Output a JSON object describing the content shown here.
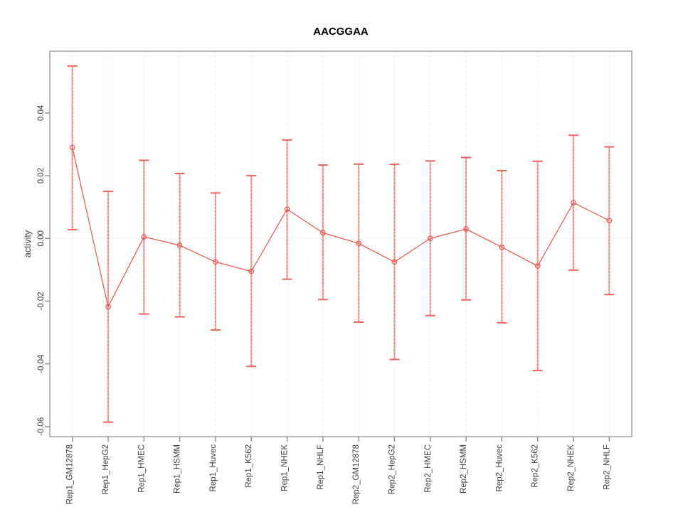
{
  "figure": {
    "background": "#ffffff"
  },
  "chart_data": {
    "type": "line",
    "subtype": "points-with-error-bars",
    "title": "AACGGAA",
    "xlabel": "",
    "ylabel": "activity",
    "categories": [
      "Rep1_GM12878",
      "Rep1_HepG2",
      "Rep1_HMEC",
      "Rep1_HSMM",
      "Rep1_Huvec",
      "Rep1_K562",
      "Rep1_NHEK",
      "Rep1_NHLF",
      "Rep2_GM12878",
      "Rep2_HepG2",
      "Rep2_HMEC",
      "Rep2_HSMM",
      "Rep2_Huvec",
      "Rep2_K562",
      "Rep2_NHEK",
      "Rep2_NHLF"
    ],
    "series": [
      {
        "name": "activity",
        "marker": "open-circle",
        "values": [
          0.029,
          -0.0218,
          0.0005,
          -0.0022,
          -0.0075,
          -0.0105,
          0.0093,
          0.0018,
          -0.0016,
          -0.0075,
          0.0,
          0.003,
          -0.0028,
          -0.0088,
          0.0114,
          0.0057
        ],
        "error_upper": [
          0.055,
          0.015,
          0.0249,
          0.0207,
          0.0145,
          0.02,
          0.0314,
          0.0234,
          0.0237,
          0.0236,
          0.0247,
          0.0258,
          0.0216,
          0.0246,
          0.0329,
          0.0292
        ],
        "error_lower": [
          0.0028,
          -0.0586,
          -0.0241,
          -0.025,
          -0.0292,
          -0.0408,
          -0.013,
          -0.0195,
          -0.0267,
          -0.0386,
          -0.0246,
          -0.0196,
          -0.0269,
          -0.0421,
          -0.0101,
          -0.0179
        ]
      }
    ],
    "ylim": [
      -0.0632,
      0.0597
    ],
    "ytick_values": [
      0.04,
      0.02,
      0.0,
      -0.02,
      -0.04,
      -0.06
    ],
    "ytick_labels": [
      "0.04",
      "0.02",
      "0.00",
      "-0.02",
      "-0.04",
      "-0.06"
    ],
    "grid": {
      "vertical": "dotted line at each category",
      "horizontal": "dotted line at y=0"
    },
    "legend": "none",
    "colors": {
      "series_red": "#ee4f48",
      "errorbar_pink": "#f7a6a2",
      "errorbar_cap": "#f2625c",
      "grid_gray": "#dcdcdc",
      "box_gray": "#9a9a9a",
      "tick_gray": "#8a8a8a",
      "label_dark": "#3d3d3d"
    }
  }
}
